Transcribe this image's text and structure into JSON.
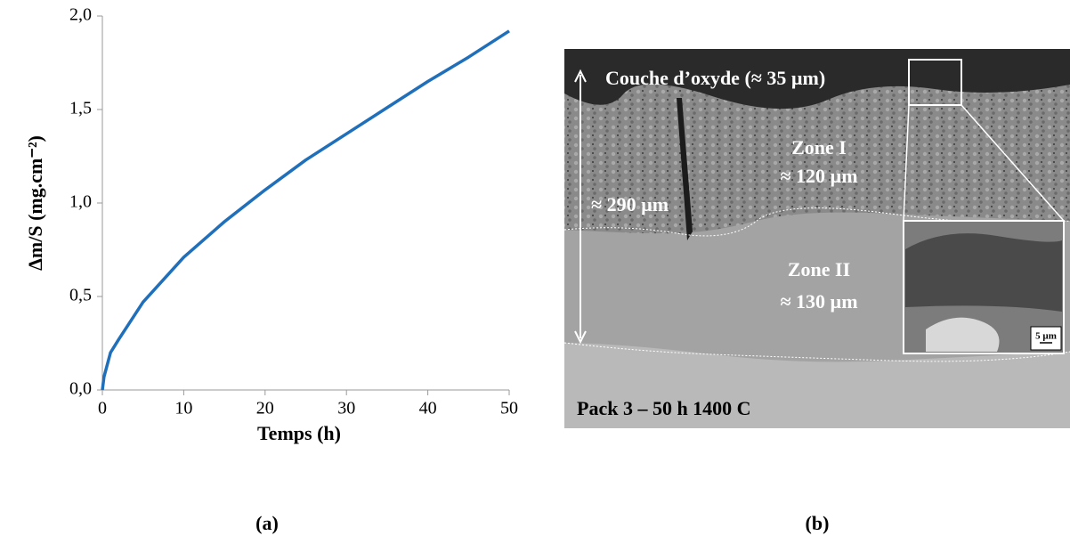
{
  "chart_data": {
    "type": "line",
    "x_label": "Temps (h)",
    "y_label": "Δm/S (mg.cm⁻²)",
    "x": [
      0,
      0.2,
      1,
      2,
      5,
      10,
      15,
      20,
      25,
      30,
      35,
      40,
      45,
      50
    ],
    "values": [
      0.0,
      0.07,
      0.2,
      0.27,
      0.47,
      0.71,
      0.9,
      1.07,
      1.23,
      1.37,
      1.51,
      1.65,
      1.78,
      1.92
    ],
    "color": "#1f6fba",
    "xlim": [
      0,
      50
    ],
    "xticks": [
      0,
      10,
      20,
      30,
      40,
      50
    ],
    "ylim": [
      0,
      2
    ],
    "yticks": [
      {
        "value": 0,
        "label": "0,0"
      },
      {
        "value": 0.5,
        "label": "0,5"
      },
      {
        "value": 1,
        "label": "1,0"
      },
      {
        "value": 1.5,
        "label": "1,5"
      },
      {
        "value": 2,
        "label": "2,0"
      }
    ]
  },
  "image": {
    "oxide": "Couche d’oxyde (≈ 35 µm)",
    "zone1": "Zone I",
    "zone1_size": "≈ 120 µm",
    "total": "≈ 290 µm",
    "zone2": "Zone II",
    "zone2_size": "≈ 130 µm",
    "scale": "5 µm",
    "condition": "Pack 3 – 50 h 1400   C"
  },
  "captions": [
    "(a)",
    "(b)"
  ]
}
